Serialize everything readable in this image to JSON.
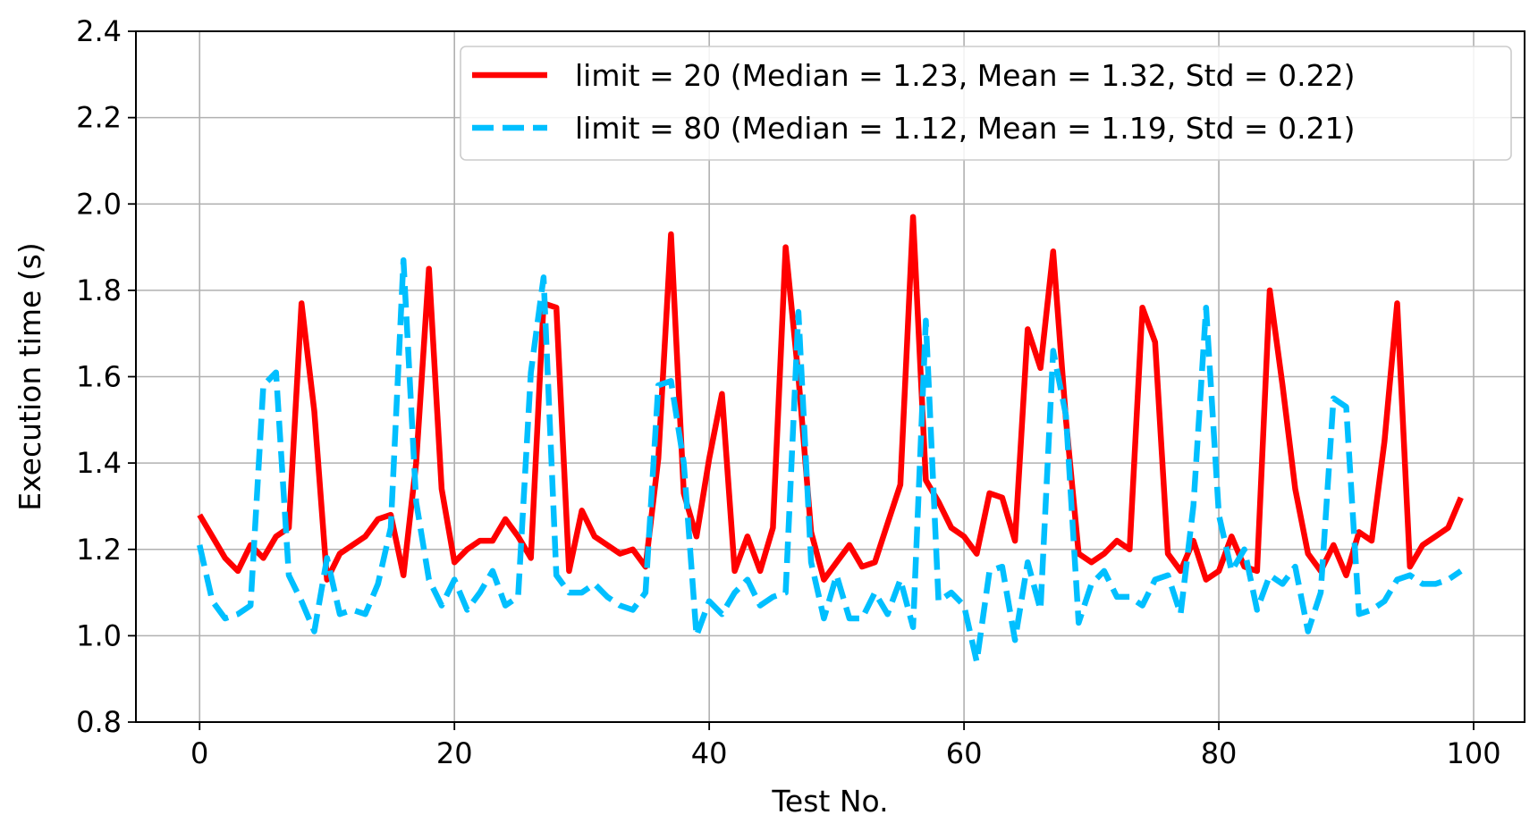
{
  "chart_data": {
    "type": "line",
    "xlabel": "Test No.",
    "ylabel": "Execution time (s)",
    "xlim": [
      -5,
      104
    ],
    "ylim": [
      0.8,
      2.4
    ],
    "xticks": [
      0,
      20,
      40,
      60,
      80,
      100
    ],
    "yticks": [
      0.8,
      1.0,
      1.2,
      1.4,
      1.6,
      1.8,
      2.0,
      2.2,
      2.4
    ],
    "xtick_labels": [
      "0",
      "20",
      "40",
      "60",
      "80",
      "100"
    ],
    "ytick_labels": [
      "0.8",
      "1.0",
      "1.2",
      "1.4",
      "1.6",
      "1.8",
      "2.0",
      "2.2",
      "2.4"
    ],
    "grid": true,
    "legend_position": "top-right",
    "series": [
      {
        "name": "limit = 20 (Median = 1.23, Mean = 1.32, Std = 0.22)",
        "color": "#ff0000",
        "style": "solid",
        "values": [
          1.28,
          1.23,
          1.18,
          1.15,
          1.21,
          1.18,
          1.23,
          1.25,
          1.77,
          1.52,
          1.13,
          1.19,
          1.21,
          1.23,
          1.27,
          1.28,
          1.14,
          1.4,
          1.85,
          1.34,
          1.17,
          1.2,
          1.22,
          1.22,
          1.27,
          1.23,
          1.18,
          1.77,
          1.76,
          1.15,
          1.29,
          1.23,
          1.21,
          1.19,
          1.2,
          1.16,
          1.41,
          1.93,
          1.33,
          1.23,
          1.41,
          1.56,
          1.15,
          1.23,
          1.15,
          1.25,
          1.9,
          1.6,
          1.24,
          1.13,
          1.17,
          1.21,
          1.16,
          1.17,
          1.26,
          1.35,
          1.97,
          1.36,
          1.31,
          1.25,
          1.23,
          1.19,
          1.33,
          1.32,
          1.22,
          1.71,
          1.62,
          1.89,
          1.5,
          1.19,
          1.17,
          1.19,
          1.22,
          1.2,
          1.76,
          1.68,
          1.19,
          1.15,
          1.22,
          1.13,
          1.15,
          1.23,
          1.16,
          1.15,
          1.8,
          1.58,
          1.34,
          1.19,
          1.15,
          1.21,
          1.14,
          1.24,
          1.22,
          1.45,
          1.77,
          1.16,
          1.21,
          1.23,
          1.25,
          1.32
        ]
      },
      {
        "name": "limit = 80 (Median = 1.12, Mean = 1.19, Std = 0.21)",
        "color": "#00bfff",
        "style": "dashed",
        "values": [
          1.21,
          1.08,
          1.04,
          1.05,
          1.07,
          1.58,
          1.61,
          1.14,
          1.08,
          1.01,
          1.18,
          1.05,
          1.06,
          1.05,
          1.12,
          1.25,
          1.87,
          1.31,
          1.13,
          1.07,
          1.13,
          1.06,
          1.1,
          1.15,
          1.07,
          1.09,
          1.61,
          1.83,
          1.14,
          1.1,
          1.1,
          1.12,
          1.09,
          1.07,
          1.06,
          1.1,
          1.58,
          1.59,
          1.4,
          1.0,
          1.08,
          1.05,
          1.1,
          1.13,
          1.07,
          1.09,
          1.1,
          1.75,
          1.17,
          1.04,
          1.14,
          1.04,
          1.04,
          1.1,
          1.05,
          1.13,
          1.02,
          1.73,
          1.08,
          1.1,
          1.07,
          0.94,
          1.15,
          1.16,
          0.99,
          1.17,
          1.06,
          1.66,
          1.51,
          1.03,
          1.12,
          1.15,
          1.09,
          1.09,
          1.07,
          1.13,
          1.14,
          1.05,
          1.3,
          1.76,
          1.28,
          1.15,
          1.2,
          1.06,
          1.14,
          1.12,
          1.16,
          1.01,
          1.1,
          1.55,
          1.53,
          1.05,
          1.06,
          1.08,
          1.13,
          1.14,
          1.12,
          1.12,
          1.13,
          1.15
        ]
      }
    ]
  }
}
